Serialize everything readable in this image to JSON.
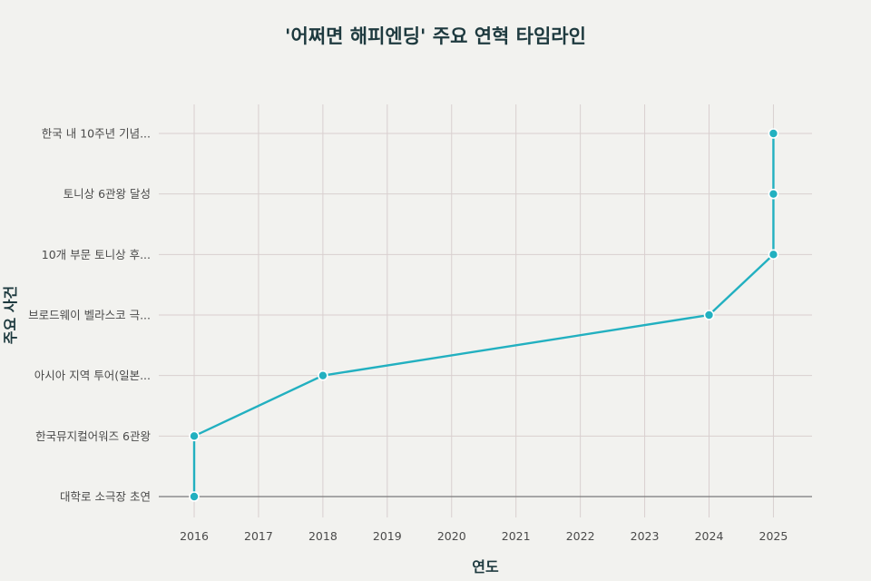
{
  "chart_data": {
    "type": "line",
    "title": "'어쩌면 해피엔딩' 주요 연혁 타임라인",
    "xlabel": "연도",
    "ylabel": "주요 사건",
    "xlim": [
      2015.45,
      2025.6
    ],
    "x_ticks": [
      2016,
      2017,
      2018,
      2019,
      2020,
      2021,
      2022,
      2023,
      2024,
      2025
    ],
    "y_categories": [
      "대학로 소극장 초연",
      "한국뮤지컬어워즈 6관왕",
      "아시아 지역 투어(일본...",
      "브로드웨이 벨라스코 극...",
      "10개 부문 토니상 후...",
      "토니상 6관왕 달성",
      "한국 내 10주년 기념..."
    ],
    "grid": true,
    "color": "#22b0c0",
    "series": [
      {
        "x": [
          2016,
          2016,
          2018,
          2024,
          2025,
          2025,
          2025
        ],
        "y": [
          "대학로 소극장 초연",
          "한국뮤지컬어워즈 6관왕",
          "아시아 지역 투어(일본...",
          "브로드웨이 벨라스코 극...",
          "10개 부문 토니상 후...",
          "토니상 6관왕 달성",
          "한국 내 10주년 기념..."
        ]
      }
    ]
  }
}
